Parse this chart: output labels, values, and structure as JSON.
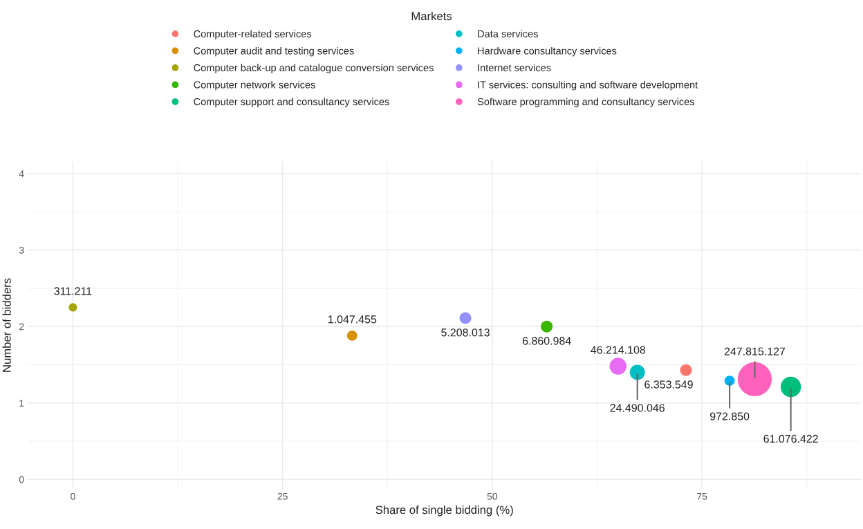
{
  "chart_data": {
    "type": "bubble",
    "xlabel": "Share of single bidding (%)",
    "ylabel": "Number of bidders",
    "legend_title": "Markets",
    "legend": "top",
    "grid": true,
    "marker": "circle",
    "xlim": [
      -5.4,
      94
    ],
    "ylim": [
      -0.13,
      4.16
    ],
    "xticks": [
      0,
      25,
      50,
      75
    ],
    "yticks": [
      0,
      1,
      2,
      3,
      4
    ],
    "series": [
      {
        "name": "Computer-related services",
        "color": "#f8766d",
        "x": [
          73.1
        ],
        "values": [
          1.43
        ],
        "sizes": [
          0.12
        ]
      },
      {
        "name": "Computer audit and testing services",
        "color": "#d89000",
        "x": [
          33.3
        ],
        "values": [
          1.88
        ],
        "sizes": [
          0.09
        ]
      },
      {
        "name": "Computer back-up and catalogue conversion services",
        "color": "#a3a500",
        "x": [
          0
        ],
        "values": [
          2.25
        ],
        "sizes": [
          0.06
        ]
      },
      {
        "name": "Computer network services",
        "color": "#39b600",
        "x": [
          56.5
        ],
        "values": [
          2.0
        ],
        "sizes": [
          0.12
        ]
      },
      {
        "name": "Computer support and consultancy services",
        "color": "#00bf7d",
        "x": [
          85.6
        ],
        "values": [
          1.21
        ],
        "sizes": [
          0.36
        ]
      },
      {
        "name": "Data services",
        "color": "#00bfc4",
        "x": [
          67.3
        ],
        "values": [
          1.4
        ],
        "sizes": [
          0.2
        ]
      },
      {
        "name": "Hardware consultancy services",
        "color": "#00b0f6",
        "x": [
          78.3
        ],
        "values": [
          1.29
        ],
        "sizes": [
          0.09
        ]
      },
      {
        "name": "Internet services",
        "color": "#9590ff",
        "x": [
          46.8
        ],
        "values": [
          2.11
        ],
        "sizes": [
          0.12
        ]
      },
      {
        "name": "IT services: consulting and software development",
        "color": "#e76bf3",
        "x": [
          65.0
        ],
        "values": [
          1.48
        ],
        "sizes": [
          0.25
        ]
      },
      {
        "name": "Software programming and consultancy services",
        "color": "#ff62bc",
        "x": [
          81.3
        ],
        "values": [
          1.31
        ],
        "sizes": [
          1
        ]
      }
    ],
    "annotations": [
      {
        "text": "6.353.549",
        "x": 73.1,
        "y": 1.43
      },
      {
        "text": "1.047.455",
        "x": 33.3,
        "y": 1.88
      },
      {
        "text": "311.211",
        "x": 0,
        "y": 2.25
      },
      {
        "text": "6.860.984",
        "x": 56.5,
        "y": 2.0
      },
      {
        "text": "61.076.422",
        "x": 85.6,
        "y": 1.21
      },
      {
        "text": "24.490.046",
        "x": 67.3,
        "y": 1.4
      },
      {
        "text": "972.850",
        "x": 78.3,
        "y": 1.29
      },
      {
        "text": "5.208.013",
        "x": 46.8,
        "y": 2.11
      },
      {
        "text": "46.214.108",
        "x": 65.0,
        "y": 1.48
      },
      {
        "text": "247.815.127",
        "x": 81.3,
        "y": 1.31
      }
    ]
  }
}
